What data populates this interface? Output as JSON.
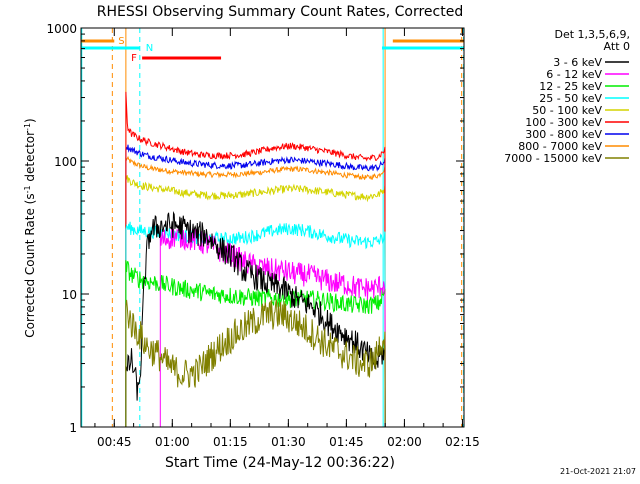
{
  "chart_data": {
    "type": "line",
    "title": "RHESSI Observing Summary Count Rates, Corrected",
    "xlabel": "Start Time (24-May-12 00:36:22)",
    "ylabel": "Corrected Count Rate (s",
    "ylabel_sup1": "-1",
    "ylabel_mid": " detector",
    "ylabel_sup2": "-1",
    "ylabel_end": ")",
    "x_unit": "minutes after 00:36:22",
    "xlim": [
      0,
      99
    ],
    "ylim": [
      1,
      1000
    ],
    "y_scale": "log",
    "x_ticks": [
      {
        "label": "00:45",
        "value": 8.6
      },
      {
        "label": "01:00",
        "value": 23.6
      },
      {
        "label": "01:15",
        "value": 38.6
      },
      {
        "label": "01:30",
        "value": 53.6
      },
      {
        "label": "01:45",
        "value": 68.6
      },
      {
        "label": "02:00",
        "value": 83.6
      },
      {
        "label": "02:15",
        "value": 98.6
      }
    ],
    "y_ticks": [
      {
        "label": "1",
        "value": 1
      },
      {
        "label": "10",
        "value": 10
      },
      {
        "label": "100",
        "value": 100
      },
      {
        "label": "1000",
        "value": 1000
      }
    ],
    "legend": {
      "placement": "right",
      "header_line1": "Det 1,3,5,6,9,",
      "header_line2": "Att 0"
    },
    "series": [
      {
        "name": "3 - 6 keV",
        "color": "#000000",
        "start": 11.6,
        "end": 78.6,
        "x": [
          11.6,
          13,
          14.8,
          15.5,
          16,
          17,
          18,
          20,
          22,
          24,
          26,
          28,
          30,
          32,
          34,
          36,
          38,
          40,
          42,
          44,
          46,
          48,
          50,
          52,
          54,
          56,
          58,
          60,
          62,
          64,
          66,
          68,
          70,
          72,
          74,
          76,
          78.6
        ],
        "y": [
          2.5,
          3.2,
          1.7,
          3,
          7,
          20,
          30,
          32,
          33,
          33,
          32,
          30,
          28,
          28,
          25,
          22,
          20,
          18,
          15,
          14,
          13,
          12,
          11.5,
          11,
          10,
          9,
          8.5,
          8,
          7,
          6,
          5.5,
          5,
          4.5,
          4,
          3.5,
          3,
          3.8
        ]
      },
      {
        "name": "6 - 12 keV",
        "color": "#ff00ff",
        "start": 20.5,
        "end": 78.6,
        "x": [
          20.5,
          22,
          24,
          26,
          28,
          30,
          32,
          34,
          36,
          38,
          40,
          42,
          44,
          46,
          48,
          50,
          52,
          54,
          56,
          58,
          60,
          62,
          64,
          66,
          68,
          70,
          72,
          74,
          76,
          78.6
        ],
        "y": [
          25,
          26,
          27,
          27,
          26,
          25,
          24,
          23,
          21,
          20,
          19,
          17.5,
          16.5,
          16,
          15.5,
          15,
          15,
          14.5,
          14,
          14,
          13.5,
          13,
          12.5,
          12,
          12,
          11.5,
          11,
          11,
          11,
          12
        ]
      },
      {
        "name": "12 - 25 keV",
        "color": "#00ee00",
        "start": 11.6,
        "end": 78.6,
        "x": [
          11.6,
          13,
          15,
          17,
          20,
          23,
          26,
          30,
          34,
          38,
          42,
          46,
          50,
          54,
          58,
          62,
          66,
          70,
          74,
          77,
          78.6
        ],
        "y": [
          16,
          14,
          13,
          12.5,
          12,
          11.5,
          11,
          10.5,
          10,
          9.8,
          9.5,
          9.3,
          9.3,
          9.2,
          9.2,
          9,
          8.6,
          8.3,
          8.2,
          8.5,
          10.5
        ]
      },
      {
        "name": "25 - 50 keV",
        "color": "#00ffff",
        "start": 11.6,
        "end": 78.6,
        "x": [
          11.6,
          13,
          15,
          17,
          20,
          23,
          26,
          30,
          34,
          38,
          42,
          46,
          50,
          54,
          58,
          62,
          66,
          70,
          74,
          77,
          78.6
        ],
        "y": [
          32,
          31,
          30,
          29.5,
          29,
          28.5,
          27.5,
          26.5,
          26,
          26,
          26.5,
          28,
          30,
          31,
          30,
          28,
          26.5,
          25,
          24.5,
          25,
          27
        ]
      },
      {
        "name": "50 - 100 keV",
        "color": "#d4d400",
        "start": 11.6,
        "end": 78.6,
        "x": [
          11.6,
          13,
          15,
          17,
          20,
          23,
          26,
          30,
          34,
          38,
          42,
          46,
          50,
          54,
          58,
          62,
          66,
          70,
          74,
          77,
          78.6
        ],
        "y": [
          75,
          70,
          66,
          64,
          62,
          60,
          58,
          56,
          55,
          55,
          56,
          58,
          60,
          62,
          61,
          59,
          57,
          55,
          54,
          56,
          62
        ]
      },
      {
        "name": "100 - 300 keV",
        "color": "#ff0000",
        "start": 11.6,
        "end": 78.6,
        "x": [
          11.6,
          12,
          13,
          15,
          17,
          20,
          23,
          26,
          30,
          34,
          38,
          42,
          46,
          50,
          54,
          58,
          62,
          66,
          70,
          74,
          77,
          78.6
        ],
        "y": [
          320,
          180,
          160,
          148,
          140,
          132,
          125,
          118,
          112,
          110,
          110,
          112,
          118,
          126,
          130,
          126,
          120,
          114,
          108,
          104,
          108,
          122
        ]
      },
      {
        "name": "300 - 800 keV",
        "color": "#0000ee",
        "start": 11.6,
        "end": 78.6,
        "x": [
          11.6,
          13,
          15,
          17,
          20,
          23,
          26,
          30,
          34,
          38,
          42,
          46,
          50,
          54,
          58,
          62,
          66,
          70,
          74,
          77,
          78.6
        ],
        "y": [
          130,
          122,
          115,
          110,
          106,
          102,
          98,
          95,
          93,
          92,
          93,
          96,
          100,
          102,
          100,
          97,
          94,
          90,
          88,
          90,
          100
        ]
      },
      {
        "name": "800 - 7000 keV",
        "color": "#ff8c00",
        "start": 11.6,
        "end": 78.6,
        "x": [
          11.6,
          13,
          15,
          17,
          20,
          23,
          26,
          30,
          34,
          38,
          42,
          46,
          50,
          54,
          58,
          62,
          66,
          70,
          74,
          77,
          78.6
        ],
        "y": [
          105,
          98,
          93,
          89,
          86,
          84,
          82,
          80,
          79,
          79,
          80,
          82,
          85,
          87,
          86,
          83,
          80,
          77,
          75,
          78,
          88
        ]
      },
      {
        "name": "7000 - 15000 keV",
        "color": "#808000",
        "start": 11.6,
        "end": 78.6,
        "x": [
          11.6,
          13,
          15,
          17,
          20,
          22,
          24,
          26,
          28,
          30,
          32,
          34,
          36,
          38,
          40,
          42,
          44,
          46,
          48,
          50,
          52,
          54,
          56,
          58,
          60,
          62,
          64,
          66,
          68,
          70,
          72,
          74,
          76,
          78.6
        ],
        "y": [
          8,
          6,
          5,
          4,
          3.5,
          3,
          2.7,
          2.5,
          2.5,
          2.6,
          3,
          3.5,
          4,
          4.5,
          5,
          5.5,
          6,
          6.5,
          7,
          7,
          7,
          6.5,
          6,
          5.5,
          5,
          4.5,
          4,
          3.8,
          3.5,
          3.3,
          3,
          3,
          3.2,
          5
        ]
      }
    ],
    "flag_bars": [
      {
        "label": "S",
        "color": "#ff8c00",
        "segments": [
          [
            0,
            8.6
          ],
          [
            80.6,
            99
          ]
        ]
      },
      {
        "label": "N",
        "color": "#00ffff",
        "segments": [
          [
            0,
            15.2
          ],
          [
            77.8,
            99
          ]
        ]
      },
      {
        "label": "F",
        "color": "#ff0000",
        "segments": [
          [
            15.8,
            36.2
          ]
        ]
      }
    ],
    "vertical_lines": [
      {
        "x": 11.6,
        "color": "#ff8c00",
        "dashed": false
      },
      {
        "x": 78.6,
        "color": "#ff8c00",
        "dashed": false
      },
      {
        "x": 8.1,
        "color": "#ff8c00",
        "dashed": true
      },
      {
        "x": 98.4,
        "color": "#ff8c00",
        "dashed": true
      },
      {
        "x": 15.2,
        "color": "#00ffff",
        "dashed": true
      },
      {
        "x": 98.9,
        "color": "#00ffff",
        "dashed": true
      },
      {
        "x": 78.1,
        "color": "#00ffff",
        "dashed": false
      },
      {
        "x": 0.2,
        "color": "#00ffff",
        "dashed": false
      }
    ],
    "timestamp": "21-Oct-2021 21:07"
  }
}
